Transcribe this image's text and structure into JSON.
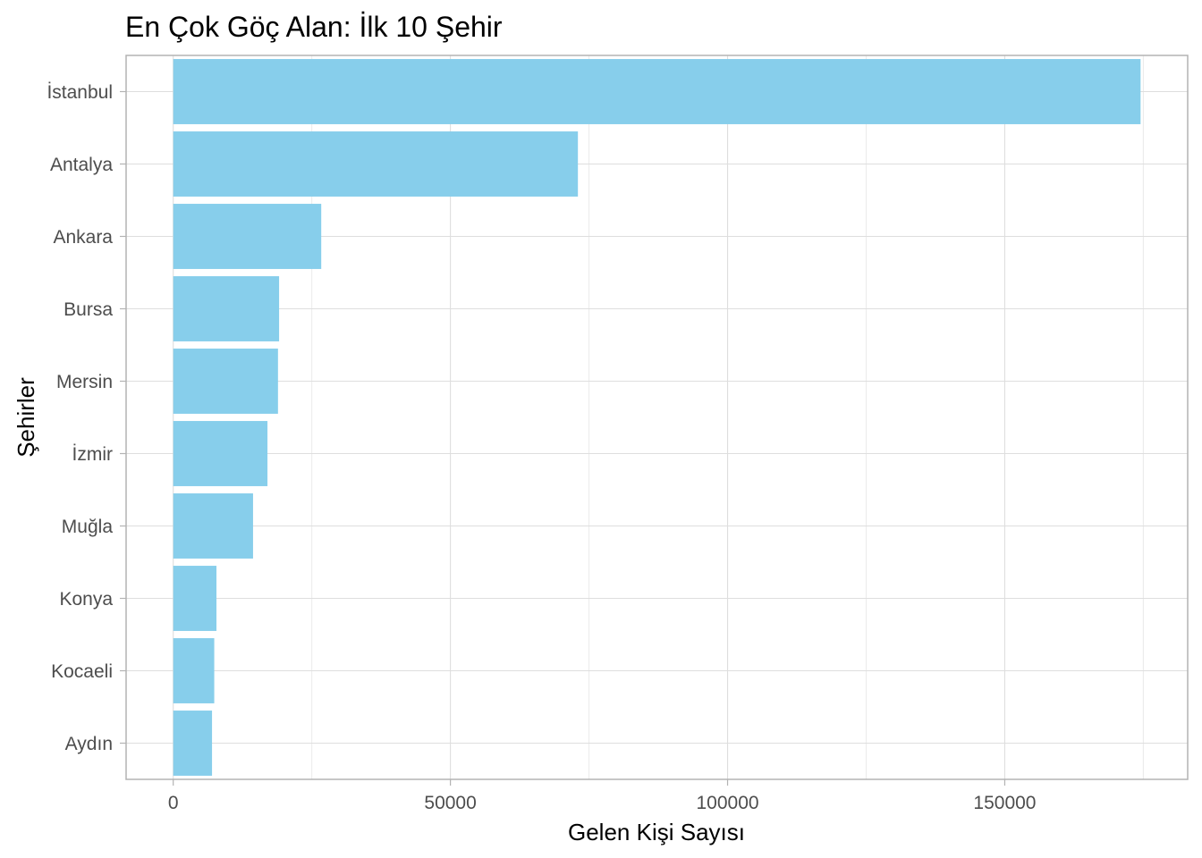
{
  "chart_data": {
    "type": "bar",
    "orientation": "horizontal",
    "title": "En Çok Göç Alan: İlk 10 Şehir",
    "xlabel": "Gelen Kişi Sayısı",
    "ylabel": "Şehirler",
    "categories": [
      "İstanbul",
      "Antalya",
      "Ankara",
      "Bursa",
      "Mersin",
      "İzmir",
      "Muğla",
      "Konya",
      "Kocaeli",
      "Aydın"
    ],
    "values": [
      174500,
      73000,
      26700,
      19100,
      18900,
      17000,
      14400,
      7800,
      7400,
      7000
    ],
    "xlim": [
      -8500,
      183000
    ],
    "xticks": [
      0,
      50000,
      100000,
      150000
    ],
    "xtick_labels": [
      "0",
      "50000",
      "100000",
      "150000"
    ],
    "bar_color": "#87CEEB",
    "grid": true,
    "legend": "none"
  }
}
